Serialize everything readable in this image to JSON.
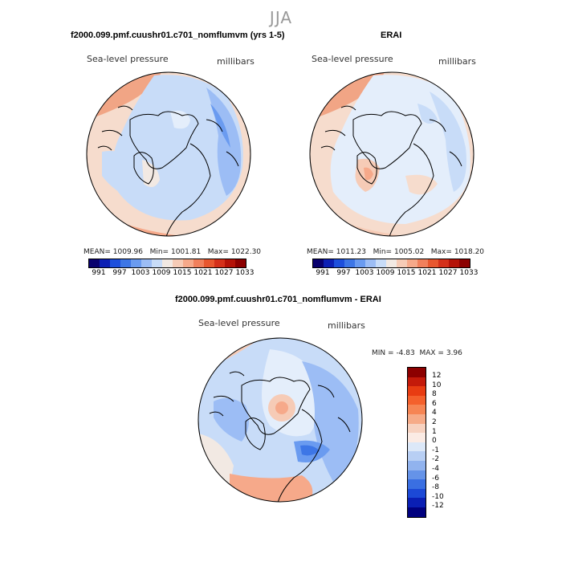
{
  "season": "JJA",
  "left_panel": {
    "title": "f2000.099.pmf.cuushr01.c701_nomflumvm (yrs 1-5)",
    "variable": "Sea-level pressure",
    "units": "millibars",
    "mean_label": "MEAN=",
    "mean": "1009.96",
    "min_label": "Min=",
    "min": "1001.81",
    "max_label": "Max=",
    "max": "1022.30"
  },
  "right_panel": {
    "title": "ERAI",
    "variable": "Sea-level pressure",
    "units": "millibars",
    "mean_label": "MEAN=",
    "mean": "1011.23",
    "min_label": "Min=",
    "min": "1005.02",
    "max_label": "Max=",
    "max": "1018.20"
  },
  "diff_panel": {
    "title": "f2000.099.pmf.cuushr01.c701_nomflumvm - ERAI",
    "variable": "Sea-level pressure",
    "units": "millibars",
    "min_label": "MIN =",
    "min": "-4.83",
    "max_label": "MAX =",
    "max": "3.96"
  },
  "abs_colorbar": {
    "colors": [
      "#08006e",
      "#0c1fb4",
      "#1d4fdc",
      "#3d76e6",
      "#6a9bf0",
      "#9cbdf5",
      "#c8dcf8",
      "#f2e9e3",
      "#f6cbb6",
      "#f6a98a",
      "#f1805c",
      "#e8572f",
      "#d4301a",
      "#b41208",
      "#8c0000"
    ],
    "labels": [
      "991",
      "997",
      "1003",
      "1009",
      "1015",
      "1021",
      "1027",
      "1033"
    ]
  },
  "diff_colorbar": {
    "colors": [
      "#8c0000",
      "#c41a0a",
      "#e83c12",
      "#f4602c",
      "#f68554",
      "#f6ab88",
      "#f7d2c0",
      "#fbebe4",
      "#dce8f8",
      "#b8cff4",
      "#91b3ee",
      "#6593e8",
      "#3a6fe2",
      "#1c49d6",
      "#0a1fb4",
      "#00007e"
    ],
    "labels": [
      "12",
      "10",
      "8",
      "6",
      "4",
      "2",
      "1",
      "0",
      "-1",
      "-2",
      "-4",
      "-6",
      "-8",
      "-10",
      "-12"
    ]
  },
  "map_regions": [
    "Arctic Ocean",
    "Greenland",
    "Eurasia",
    "North America"
  ]
}
